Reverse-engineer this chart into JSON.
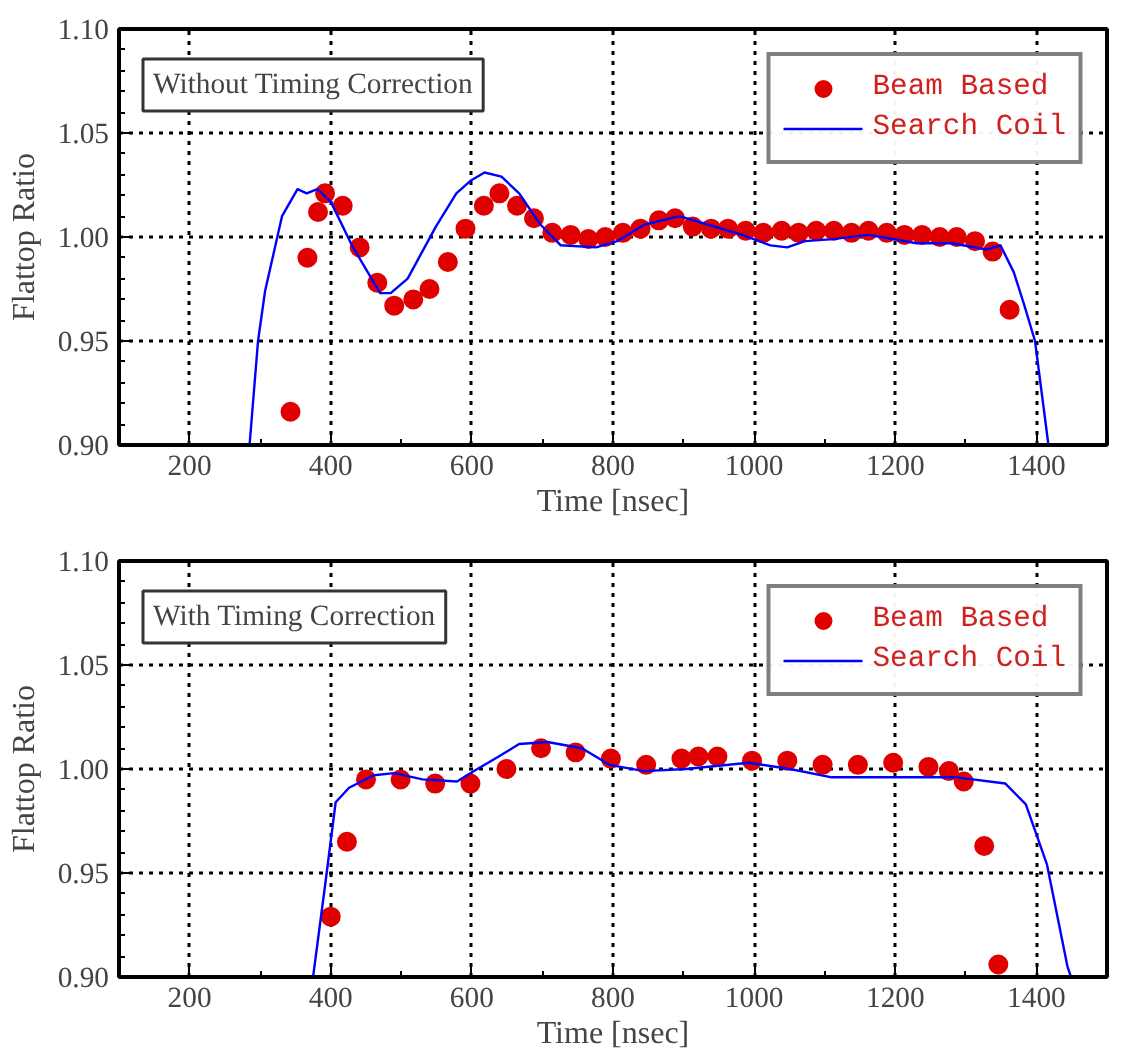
{
  "chart_data": [
    {
      "type": "line",
      "xlabel": "Time [nsec]",
      "ylabel": "Flattop Ratio",
      "annotations": [
        "Without Timing Correction"
      ],
      "xlim": [
        100,
        1500
      ],
      "ylim": [
        0.9,
        1.1
      ],
      "xticks": [
        200,
        400,
        600,
        800,
        1000,
        1200,
        1400
      ],
      "yticks": [
        {
          "value": 0.9,
          "label": "0.90"
        },
        {
          "value": 0.95,
          "label": "0.95"
        },
        {
          "value": 1.0,
          "label": "1.00"
        },
        {
          "value": 1.05,
          "label": "1.05"
        },
        {
          "value": 1.1,
          "label": "1.10"
        }
      ],
      "grid": true,
      "legend": "top right",
      "series": [
        {
          "name": "Beam Based",
          "type": "scatter",
          "marker": "circle",
          "color": "#e00000",
          "x": [
            343,
            367,
            382,
            392,
            417,
            441,
            466,
            490,
            517,
            540,
            566,
            591,
            617,
            639,
            664,
            688,
            714,
            740,
            765,
            789,
            814,
            839,
            865,
            888,
            913,
            939,
            963,
            988,
            1013,
            1039,
            1063,
            1088,
            1113,
            1138,
            1162,
            1188,
            1213,
            1238,
            1263,
            1287,
            1313,
            1338,
            1362
          ],
          "values": [
            0.916,
            0.99,
            1.012,
            1.021,
            1.015,
            0.995,
            0.978,
            0.967,
            0.97,
            0.975,
            0.988,
            1.004,
            1.015,
            1.021,
            1.015,
            1.009,
            1.002,
            1.001,
            0.999,
            1.0,
            1.002,
            1.004,
            1.008,
            1.009,
            1.005,
            1.004,
            1.004,
            1.003,
            1.002,
            1.003,
            1.002,
            1.003,
            1.003,
            1.002,
            1.003,
            1.002,
            1.001,
            1.001,
            1.0,
            1.0,
            0.998,
            0.993,
            0.965
          ]
        },
        {
          "name": "Search Coil",
          "color": "#0000ff",
          "x": [
            285,
            297,
            307,
            331,
            353,
            366,
            381,
            400,
            430,
            470,
            485,
            509,
            549,
            578,
            598,
            618,
            642,
            667,
            697,
            726,
            776,
            806,
            845,
            894,
            934,
            983,
            1023,
            1047,
            1072,
            1112,
            1161,
            1180,
            1230,
            1280,
            1329,
            1349,
            1368,
            1383,
            1398,
            1417
          ],
          "values": [
            0.9,
            0.95,
            0.974,
            1.01,
            1.023,
            1.021,
            1.023,
            1.017,
            0.996,
            0.973,
            0.973,
            0.98,
            1.005,
            1.021,
            1.027,
            1.031,
            1.029,
            1.021,
            1.006,
            0.996,
            0.995,
            0.998,
            1.006,
            1.01,
            1.006,
            1.001,
            0.996,
            0.995,
            0.998,
            0.999,
            1.001,
            1.0,
            0.997,
            0.997,
            0.994,
            0.996,
            0.983,
            0.967,
            0.95,
            0.9
          ]
        }
      ]
    },
    {
      "type": "line",
      "xlabel": "Time [nsec]",
      "ylabel": "Flattop Ratio",
      "annotations": [
        "With Timing Correction"
      ],
      "xlim": [
        100,
        1500
      ],
      "ylim": [
        0.9,
        1.1
      ],
      "xticks": [
        200,
        400,
        600,
        800,
        1000,
        1200,
        1400
      ],
      "yticks": [
        {
          "value": 0.9,
          "label": "0.90"
        },
        {
          "value": 0.95,
          "label": "0.95"
        },
        {
          "value": 1.0,
          "label": "1.00"
        },
        {
          "value": 1.05,
          "label": "1.05"
        },
        {
          "value": 1.1,
          "label": "1.10"
        }
      ],
      "grid": true,
      "legend": "top right",
      "series": [
        {
          "name": "Beam Based",
          "type": "scatter",
          "marker": "circle",
          "color": "#e00000",
          "x": [
            400,
            423,
            450,
            499,
            548,
            598,
            649,
            698,
            747,
            797,
            847,
            897,
            921,
            948,
            997,
            1047,
            1097,
            1147,
            1197,
            1247,
            1276,
            1297,
            1326,
            1346
          ],
          "values": [
            0.929,
            0.965,
            0.995,
            0.995,
            0.993,
            0.993,
            1.0,
            1.01,
            1.008,
            1.005,
            1.002,
            1.005,
            1.006,
            1.006,
            1.004,
            1.004,
            1.002,
            1.002,
            1.003,
            1.001,
            0.999,
            0.994,
            0.963,
            0.906
          ]
        },
        {
          "name": "Search Coil",
          "color": "#0000ff",
          "x": [
            375,
            392,
            407,
            426,
            461,
            490,
            530,
            579,
            603,
            638,
            667,
            707,
            756,
            795,
            844,
            903,
            992,
            1051,
            1110,
            1198,
            1287,
            1356,
            1385,
            1415,
            1444,
            1449
          ],
          "values": [
            0.9,
            0.944,
            0.984,
            0.991,
            0.997,
            0.998,
            0.995,
            0.994,
            0.999,
            1.006,
            1.012,
            1.013,
            1.01,
            1.002,
            0.999,
            1.0,
            1.003,
            1.0,
            0.996,
            0.996,
            0.996,
            0.993,
            0.983,
            0.954,
            0.905,
            0.9
          ]
        }
      ]
    }
  ]
}
